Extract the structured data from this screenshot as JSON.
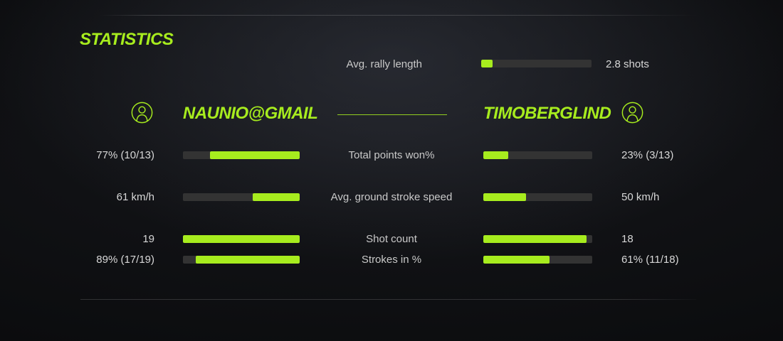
{
  "title": "STATISTICS",
  "colors": {
    "accent": "#a7ec1e",
    "track": "#333333",
    "background": "#0c0d10",
    "text": "#d6d6d6"
  },
  "rally": {
    "label": "Avg. rally length",
    "value": "2.8 shots",
    "fill_pct": 10
  },
  "players": {
    "left": {
      "name": "NAUNIO@GMAIL",
      "icon": "user-icon"
    },
    "right": {
      "name": "TIMOBERGLIND",
      "icon": "user-icon"
    }
  },
  "stats": [
    {
      "label": "Total points won%",
      "left_value": "77% (10/13)",
      "left_fill_pct": 77,
      "right_value": "23% (3/13)",
      "right_fill_pct": 23
    },
    {
      "label": "Avg. ground stroke speed",
      "left_value": "61 km/h",
      "left_fill_pct": 40,
      "right_value": "50 km/h",
      "right_fill_pct": 39
    },
    {
      "label": "Shot count",
      "left_value": "19",
      "left_fill_pct": 100,
      "right_value": "18",
      "right_fill_pct": 95
    },
    {
      "label": "Strokes in %",
      "left_value": "89% (17/19)",
      "left_fill_pct": 89,
      "right_value": "61% (11/18)",
      "right_fill_pct": 61
    }
  ]
}
